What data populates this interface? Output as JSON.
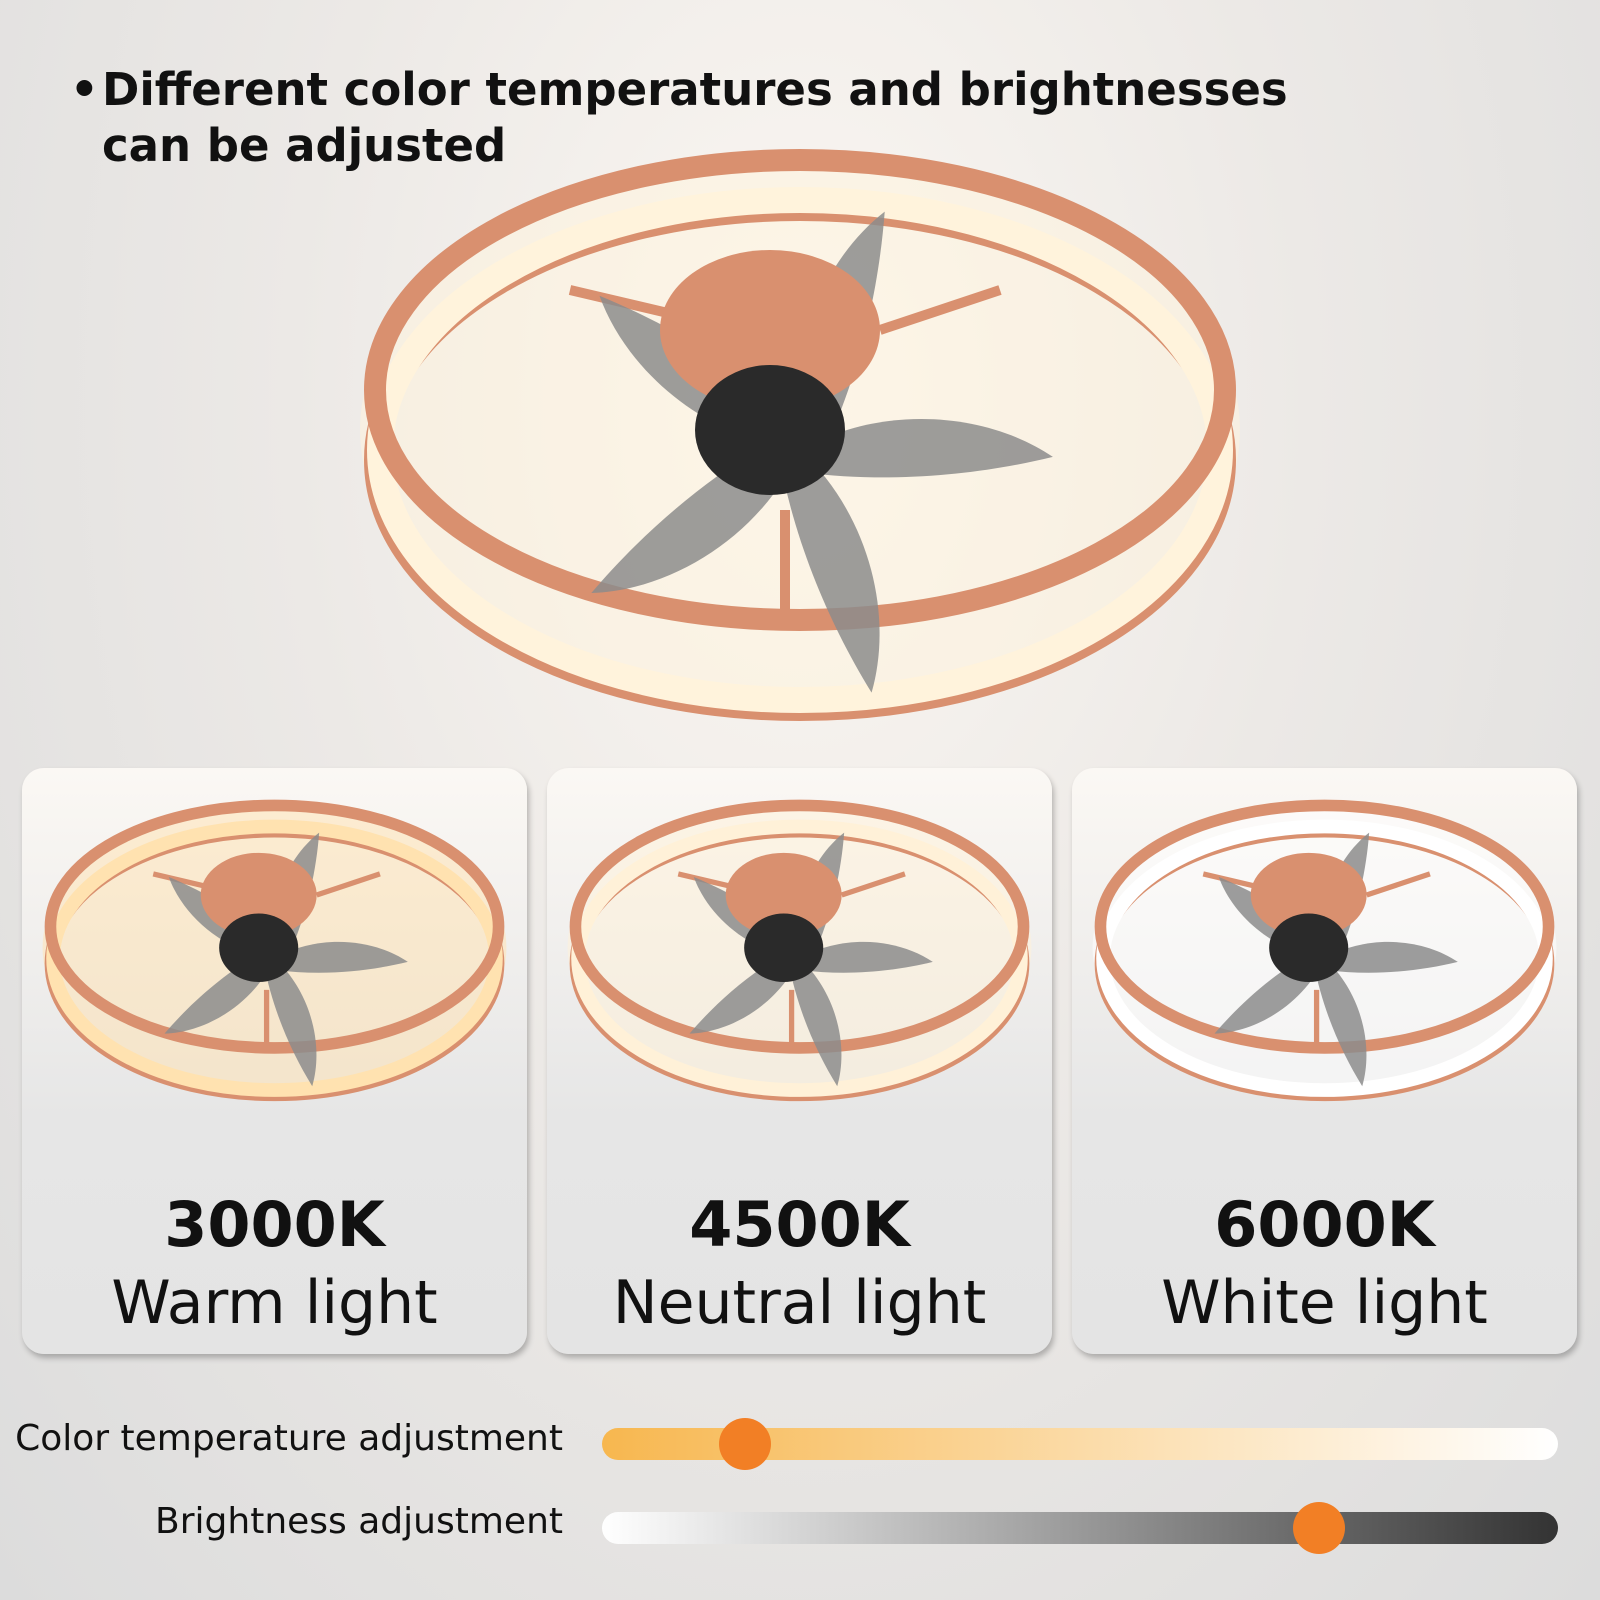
{
  "headline": {
    "bullet": "•",
    "text": "Different color temperatures and brightnesses can be adjusted"
  },
  "modes": [
    {
      "kelvin": "3000K",
      "name": "Warm light",
      "glow": "#ffe2b0"
    },
    {
      "kelvin": "4500K",
      "name": "Neutral light",
      "glow": "#fff1d8"
    },
    {
      "kelvin": "6000K",
      "name": "White light",
      "glow": "#ffffff"
    }
  ],
  "sliders": {
    "color_temperature": {
      "label": "Color temperature adjustment",
      "value_percent": 15,
      "gradient": [
        "#f7b74f",
        "#ffffff"
      ]
    },
    "brightness": {
      "label": "Brightness adjustment",
      "value_percent": 75,
      "gradient": [
        "#ffffff",
        "#333333"
      ]
    }
  },
  "colors": {
    "frame": "#d9906f",
    "knob": "#f27f25",
    "blade": "#8c8c8c",
    "hub": "#2a2a2a"
  }
}
